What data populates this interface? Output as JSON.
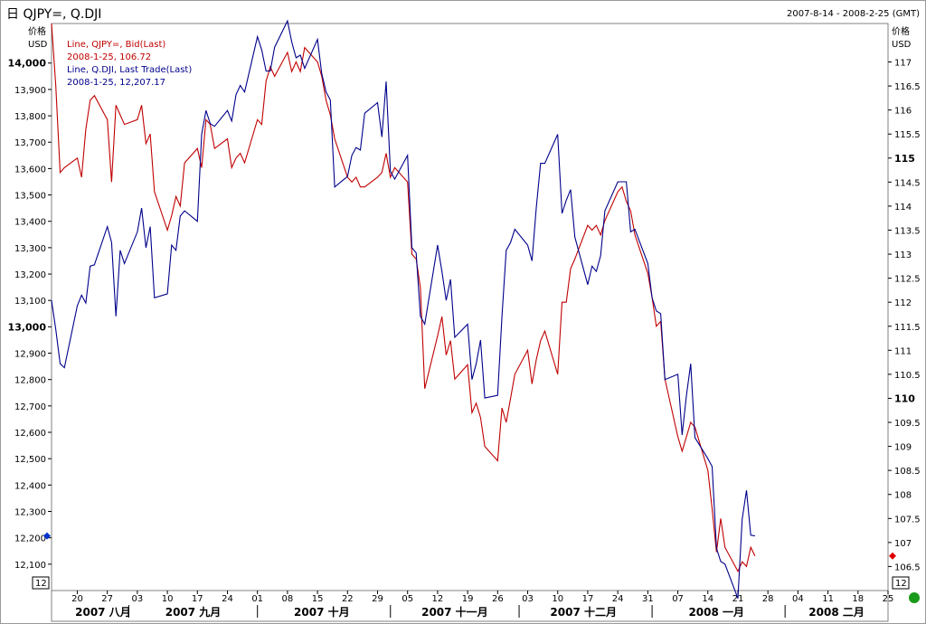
{
  "header": {
    "title": "日 QJPY=, Q.DJI",
    "range": "2007-8-14 - 2008-2-25 (GMT)"
  },
  "left_axis_unit": [
    "价格",
    "USD"
  ],
  "right_axis_unit": [
    "价格",
    "USD"
  ],
  "legend": [
    {
      "line": "Line, QJPY=, Bid(Last)",
      "value": "2008-1-25, 106.72",
      "color": "#c00000"
    },
    {
      "line": "Line, Q.DJI, Last Trade(Last)",
      "value": "2008-1-25, 12,207.17",
      "color": "#00008b"
    }
  ],
  "corner_labels": {
    "left": "12",
    "right": "12"
  },
  "chart_data": {
    "type": "line",
    "title": "QJPY=, Q.DJI",
    "x_range": [
      "2007-08-14",
      "2008-02-25"
    ],
    "left_axis": {
      "range": [
        12000,
        14150
      ],
      "ticks": [
        12100,
        12200,
        12300,
        12400,
        12500,
        12600,
        12700,
        12800,
        12900,
        13000,
        13100,
        13200,
        13300,
        13400,
        13500,
        13600,
        13700,
        13800,
        13900,
        14000
      ],
      "tick_labels": [
        "12,100",
        "12,200",
        "12,300",
        "12,400",
        "12,500",
        "12,600",
        "12,700",
        "12,800",
        "12,900",
        "13,000",
        "13,100",
        "13,200",
        "13,300",
        "13,400",
        "13,500",
        "13,600",
        "13,700",
        "13,800",
        "13,900",
        "14,000"
      ],
      "bold": [
        "13,000",
        "14,000"
      ]
    },
    "right_axis": {
      "range": [
        106,
        117.8
      ],
      "ticks": [
        106.5,
        107,
        107.5,
        108,
        108.5,
        109,
        109.5,
        110,
        110.5,
        111,
        111.5,
        112,
        112.5,
        113,
        113.5,
        114,
        114.5,
        115,
        115.5,
        116,
        116.5,
        117
      ],
      "tick_labels": [
        "106.5",
        "107",
        "107.5",
        "108",
        "108.5",
        "109",
        "109.5",
        "110",
        "110.5",
        "111",
        "111.5",
        "112",
        "112.5",
        "113",
        "113.5",
        "114",
        "114.5",
        "115",
        "115.5",
        "116",
        "116.5",
        "117"
      ],
      "bold": [
        "110",
        "115"
      ]
    },
    "x_axis": {
      "day_ticks": [
        {
          "date": "2007-08-20",
          "label": "20"
        },
        {
          "date": "2007-08-27",
          "label": "27"
        },
        {
          "date": "2007-09-03",
          "label": "03"
        },
        {
          "date": "2007-09-10",
          "label": "10"
        },
        {
          "date": "2007-09-17",
          "label": "17"
        },
        {
          "date": "2007-09-24",
          "label": "24"
        },
        {
          "date": "2007-10-01",
          "label": "01"
        },
        {
          "date": "2007-10-08",
          "label": "08"
        },
        {
          "date": "2007-10-15",
          "label": "15"
        },
        {
          "date": "2007-10-22",
          "label": "22"
        },
        {
          "date": "2007-10-29",
          "label": "29"
        },
        {
          "date": "2007-11-05",
          "label": "05"
        },
        {
          "date": "2007-11-12",
          "label": "12"
        },
        {
          "date": "2007-11-19",
          "label": "19"
        },
        {
          "date": "2007-11-26",
          "label": "26"
        },
        {
          "date": "2007-12-03",
          "label": "03"
        },
        {
          "date": "2007-12-10",
          "label": "10"
        },
        {
          "date": "2007-12-17",
          "label": "17"
        },
        {
          "date": "2007-12-24",
          "label": "24"
        },
        {
          "date": "2007-12-31",
          "label": "31"
        },
        {
          "date": "2008-01-07",
          "label": "07"
        },
        {
          "date": "2008-01-14",
          "label": "14"
        },
        {
          "date": "2008-01-21",
          "label": "21"
        },
        {
          "date": "2008-01-28",
          "label": "28"
        },
        {
          "date": "2008-02-04",
          "label": "04"
        },
        {
          "date": "2008-02-11",
          "label": "11"
        },
        {
          "date": "2008-02-18",
          "label": "18"
        },
        {
          "date": "2008-02-25",
          "label": "25"
        }
      ],
      "month_labels": [
        {
          "label": "2007 八月",
          "center": "2007-08-26",
          "sep_after": "2007-09-01"
        },
        {
          "label": "2007 九月",
          "center": "2007-09-16",
          "sep_after": "2007-10-01"
        },
        {
          "label": "2007 十月",
          "center": "2007-10-16",
          "sep_after": "2007-11-01"
        },
        {
          "label": "2007 十一月",
          "center": "2007-11-16",
          "sep_after": "2007-12-01"
        },
        {
          "label": "2007 十二月",
          "center": "2007-12-16",
          "sep_after": "2008-01-01"
        },
        {
          "label": "2008 一月",
          "center": "2008-01-16",
          "sep_after": "2008-02-01"
        },
        {
          "label": "2008 二月",
          "center": "2008-02-13",
          "sep_after": null
        }
      ]
    },
    "series": [
      {
        "name": "Line, QJPY=, Bid(Last)",
        "color": "#c00000",
        "axis": "right",
        "x": [
          "2007-08-14",
          "2007-08-15",
          "2007-08-16",
          "2007-08-17",
          "2007-08-20",
          "2007-08-21",
          "2007-08-22",
          "2007-08-23",
          "2007-08-24",
          "2007-08-27",
          "2007-08-28",
          "2007-08-29",
          "2007-08-30",
          "2007-08-31",
          "2007-09-03",
          "2007-09-04",
          "2007-09-05",
          "2007-09-06",
          "2007-09-07",
          "2007-09-10",
          "2007-09-11",
          "2007-09-12",
          "2007-09-13",
          "2007-09-14",
          "2007-09-17",
          "2007-09-18",
          "2007-09-19",
          "2007-09-20",
          "2007-09-21",
          "2007-09-24",
          "2007-09-25",
          "2007-09-26",
          "2007-09-27",
          "2007-09-28",
          "2007-10-01",
          "2007-10-02",
          "2007-10-03",
          "2007-10-04",
          "2007-10-05",
          "2007-10-08",
          "2007-10-09",
          "2007-10-10",
          "2007-10-11",
          "2007-10-12",
          "2007-10-15",
          "2007-10-16",
          "2007-10-17",
          "2007-10-18",
          "2007-10-19",
          "2007-10-22",
          "2007-10-23",
          "2007-10-24",
          "2007-10-25",
          "2007-10-26",
          "2007-10-29",
          "2007-10-30",
          "2007-10-31",
          "2007-11-01",
          "2007-11-02",
          "2007-11-05",
          "2007-11-06",
          "2007-11-07",
          "2007-11-08",
          "2007-11-09",
          "2007-11-12",
          "2007-11-13",
          "2007-11-14",
          "2007-11-15",
          "2007-11-16",
          "2007-11-19",
          "2007-11-20",
          "2007-11-21",
          "2007-11-22",
          "2007-11-23",
          "2007-11-26",
          "2007-11-27",
          "2007-11-28",
          "2007-11-29",
          "2007-11-30",
          "2007-12-03",
          "2007-12-04",
          "2007-12-05",
          "2007-12-06",
          "2007-12-07",
          "2007-12-10",
          "2007-12-11",
          "2007-12-12",
          "2007-12-13",
          "2007-12-14",
          "2007-12-17",
          "2007-12-18",
          "2007-12-19",
          "2007-12-20",
          "2007-12-21",
          "2007-12-24",
          "2007-12-25",
          "2007-12-26",
          "2007-12-27",
          "2007-12-28",
          "2007-12-31",
          "2008-01-01",
          "2008-01-02",
          "2008-01-03",
          "2008-01-04",
          "2008-01-07",
          "2008-01-08",
          "2008-01-09",
          "2008-01-10",
          "2008-01-11",
          "2008-01-14",
          "2008-01-15",
          "2008-01-16",
          "2008-01-17",
          "2008-01-18",
          "2008-01-21",
          "2008-01-22",
          "2008-01-23",
          "2008-01-24",
          "2008-01-25"
        ],
        "y": [
          117.8,
          116.5,
          114.7,
          114.8,
          115.0,
          114.6,
          115.6,
          116.2,
          116.3,
          115.8,
          114.5,
          116.1,
          115.9,
          115.7,
          115.8,
          116.1,
          115.3,
          115.5,
          114.3,
          113.5,
          113.8,
          114.2,
          114.0,
          114.9,
          115.2,
          114.8,
          115.8,
          115.7,
          115.2,
          115.4,
          114.8,
          115.0,
          115.1,
          114.9,
          115.8,
          115.7,
          116.6,
          116.9,
          116.7,
          117.2,
          116.8,
          117.0,
          116.8,
          117.3,
          117.0,
          116.7,
          116.2,
          115.9,
          115.4,
          114.6,
          114.5,
          114.6,
          114.4,
          114.4,
          114.6,
          114.7,
          115.1,
          114.6,
          114.8,
          114.5,
          113.0,
          112.9,
          112.3,
          110.2,
          111.3,
          111.7,
          110.9,
          111.2,
          110.4,
          110.7,
          109.7,
          109.9,
          109.6,
          109.0,
          108.7,
          109.8,
          109.5,
          110.0,
          110.5,
          111.0,
          110.3,
          110.8,
          111.2,
          111.4,
          110.5,
          112.0,
          112.0,
          112.7,
          112.9,
          113.6,
          113.5,
          113.6,
          113.4,
          113.7,
          114.3,
          114.4,
          114.1,
          113.9,
          113.4,
          112.6,
          112.1,
          111.5,
          111.6,
          110.4,
          109.2,
          108.9,
          109.2,
          109.5,
          109.4,
          108.5,
          107.7,
          106.8,
          107.5,
          106.9,
          106.4,
          106.6,
          106.5,
          106.9,
          106.72
        ]
      },
      {
        "name": "Line, Q.DJI, Last Trade(Last)",
        "color": "#00008b",
        "axis": "left",
        "x": [
          "2007-08-14",
          "2007-08-15",
          "2007-08-16",
          "2007-08-17",
          "2007-08-20",
          "2007-08-21",
          "2007-08-22",
          "2007-08-23",
          "2007-08-24",
          "2007-08-27",
          "2007-08-28",
          "2007-08-29",
          "2007-08-30",
          "2007-08-31",
          "2007-09-03",
          "2007-09-04",
          "2007-09-05",
          "2007-09-06",
          "2007-09-07",
          "2007-09-10",
          "2007-09-11",
          "2007-09-12",
          "2007-09-13",
          "2007-09-14",
          "2007-09-17",
          "2007-09-18",
          "2007-09-19",
          "2007-09-20",
          "2007-09-21",
          "2007-09-24",
          "2007-09-25",
          "2007-09-26",
          "2007-09-27",
          "2007-09-28",
          "2007-10-01",
          "2007-10-02",
          "2007-10-03",
          "2007-10-04",
          "2007-10-05",
          "2007-10-08",
          "2007-10-09",
          "2007-10-10",
          "2007-10-11",
          "2007-10-12",
          "2007-10-15",
          "2007-10-16",
          "2007-10-17",
          "2007-10-18",
          "2007-10-19",
          "2007-10-22",
          "2007-10-23",
          "2007-10-24",
          "2007-10-25",
          "2007-10-26",
          "2007-10-29",
          "2007-10-30",
          "2007-10-31",
          "2007-11-01",
          "2007-11-02",
          "2007-11-05",
          "2007-11-06",
          "2007-11-07",
          "2007-11-08",
          "2007-11-09",
          "2007-11-12",
          "2007-11-13",
          "2007-11-14",
          "2007-11-15",
          "2007-11-16",
          "2007-11-19",
          "2007-11-20",
          "2007-11-21",
          "2007-11-22",
          "2007-11-23",
          "2007-11-26",
          "2007-11-27",
          "2007-11-28",
          "2007-11-29",
          "2007-11-30",
          "2007-12-03",
          "2007-12-04",
          "2007-12-05",
          "2007-12-06",
          "2007-12-07",
          "2007-12-10",
          "2007-12-11",
          "2007-12-12",
          "2007-12-13",
          "2007-12-14",
          "2007-12-17",
          "2007-12-18",
          "2007-12-19",
          "2007-12-20",
          "2007-12-21",
          "2007-12-24",
          "2007-12-25",
          "2007-12-26",
          "2007-12-27",
          "2007-12-28",
          "2007-12-31",
          "2008-01-01",
          "2008-01-02",
          "2008-01-03",
          "2008-01-04",
          "2008-01-07",
          "2008-01-08",
          "2008-01-09",
          "2008-01-10",
          "2008-01-11",
          "2008-01-14",
          "2008-01-15",
          "2008-01-16",
          "2008-01-17",
          "2008-01-18",
          "2008-01-21",
          "2008-01-22",
          "2008-01-23",
          "2008-01-24",
          "2008-01-25"
        ],
        "y": [
          13100,
          12990,
          12860,
          12845,
          13080,
          13120,
          13090,
          13230,
          13235,
          13380,
          13320,
          13040,
          13290,
          13240,
          13360,
          13450,
          13300,
          13380,
          13110,
          13125,
          13310,
          13290,
          13420,
          13440,
          13400,
          13730,
          13820,
          13770,
          13760,
          13820,
          13780,
          13880,
          13915,
          13890,
          14100,
          14050,
          13970,
          13970,
          14060,
          14160,
          14080,
          14020,
          14030,
          13980,
          14090,
          13960,
          13890,
          13860,
          13530,
          13570,
          13650,
          13680,
          13670,
          13810,
          13850,
          13720,
          13930,
          13590,
          13560,
          13650,
          13300,
          13280,
          13040,
          13010,
          13310,
          13210,
          13100,
          13180,
          12960,
          13010,
          12800,
          12860,
          12950,
          12730,
          12740,
          13040,
          13290,
          13320,
          13370,
          13310,
          13250,
          13450,
          13620,
          13620,
          13730,
          13430,
          13480,
          13520,
          13340,
          13160,
          13230,
          13210,
          13270,
          13440,
          13550,
          13550,
          13550,
          13360,
          13370,
          13240,
          13110,
          13060,
          13050,
          12800,
          12820,
          12590,
          12740,
          12860,
          12580,
          12500,
          12470,
          12160,
          12110,
          12100,
          11970,
          12270,
          12380,
          12210,
          12207.17
        ]
      }
    ]
  }
}
